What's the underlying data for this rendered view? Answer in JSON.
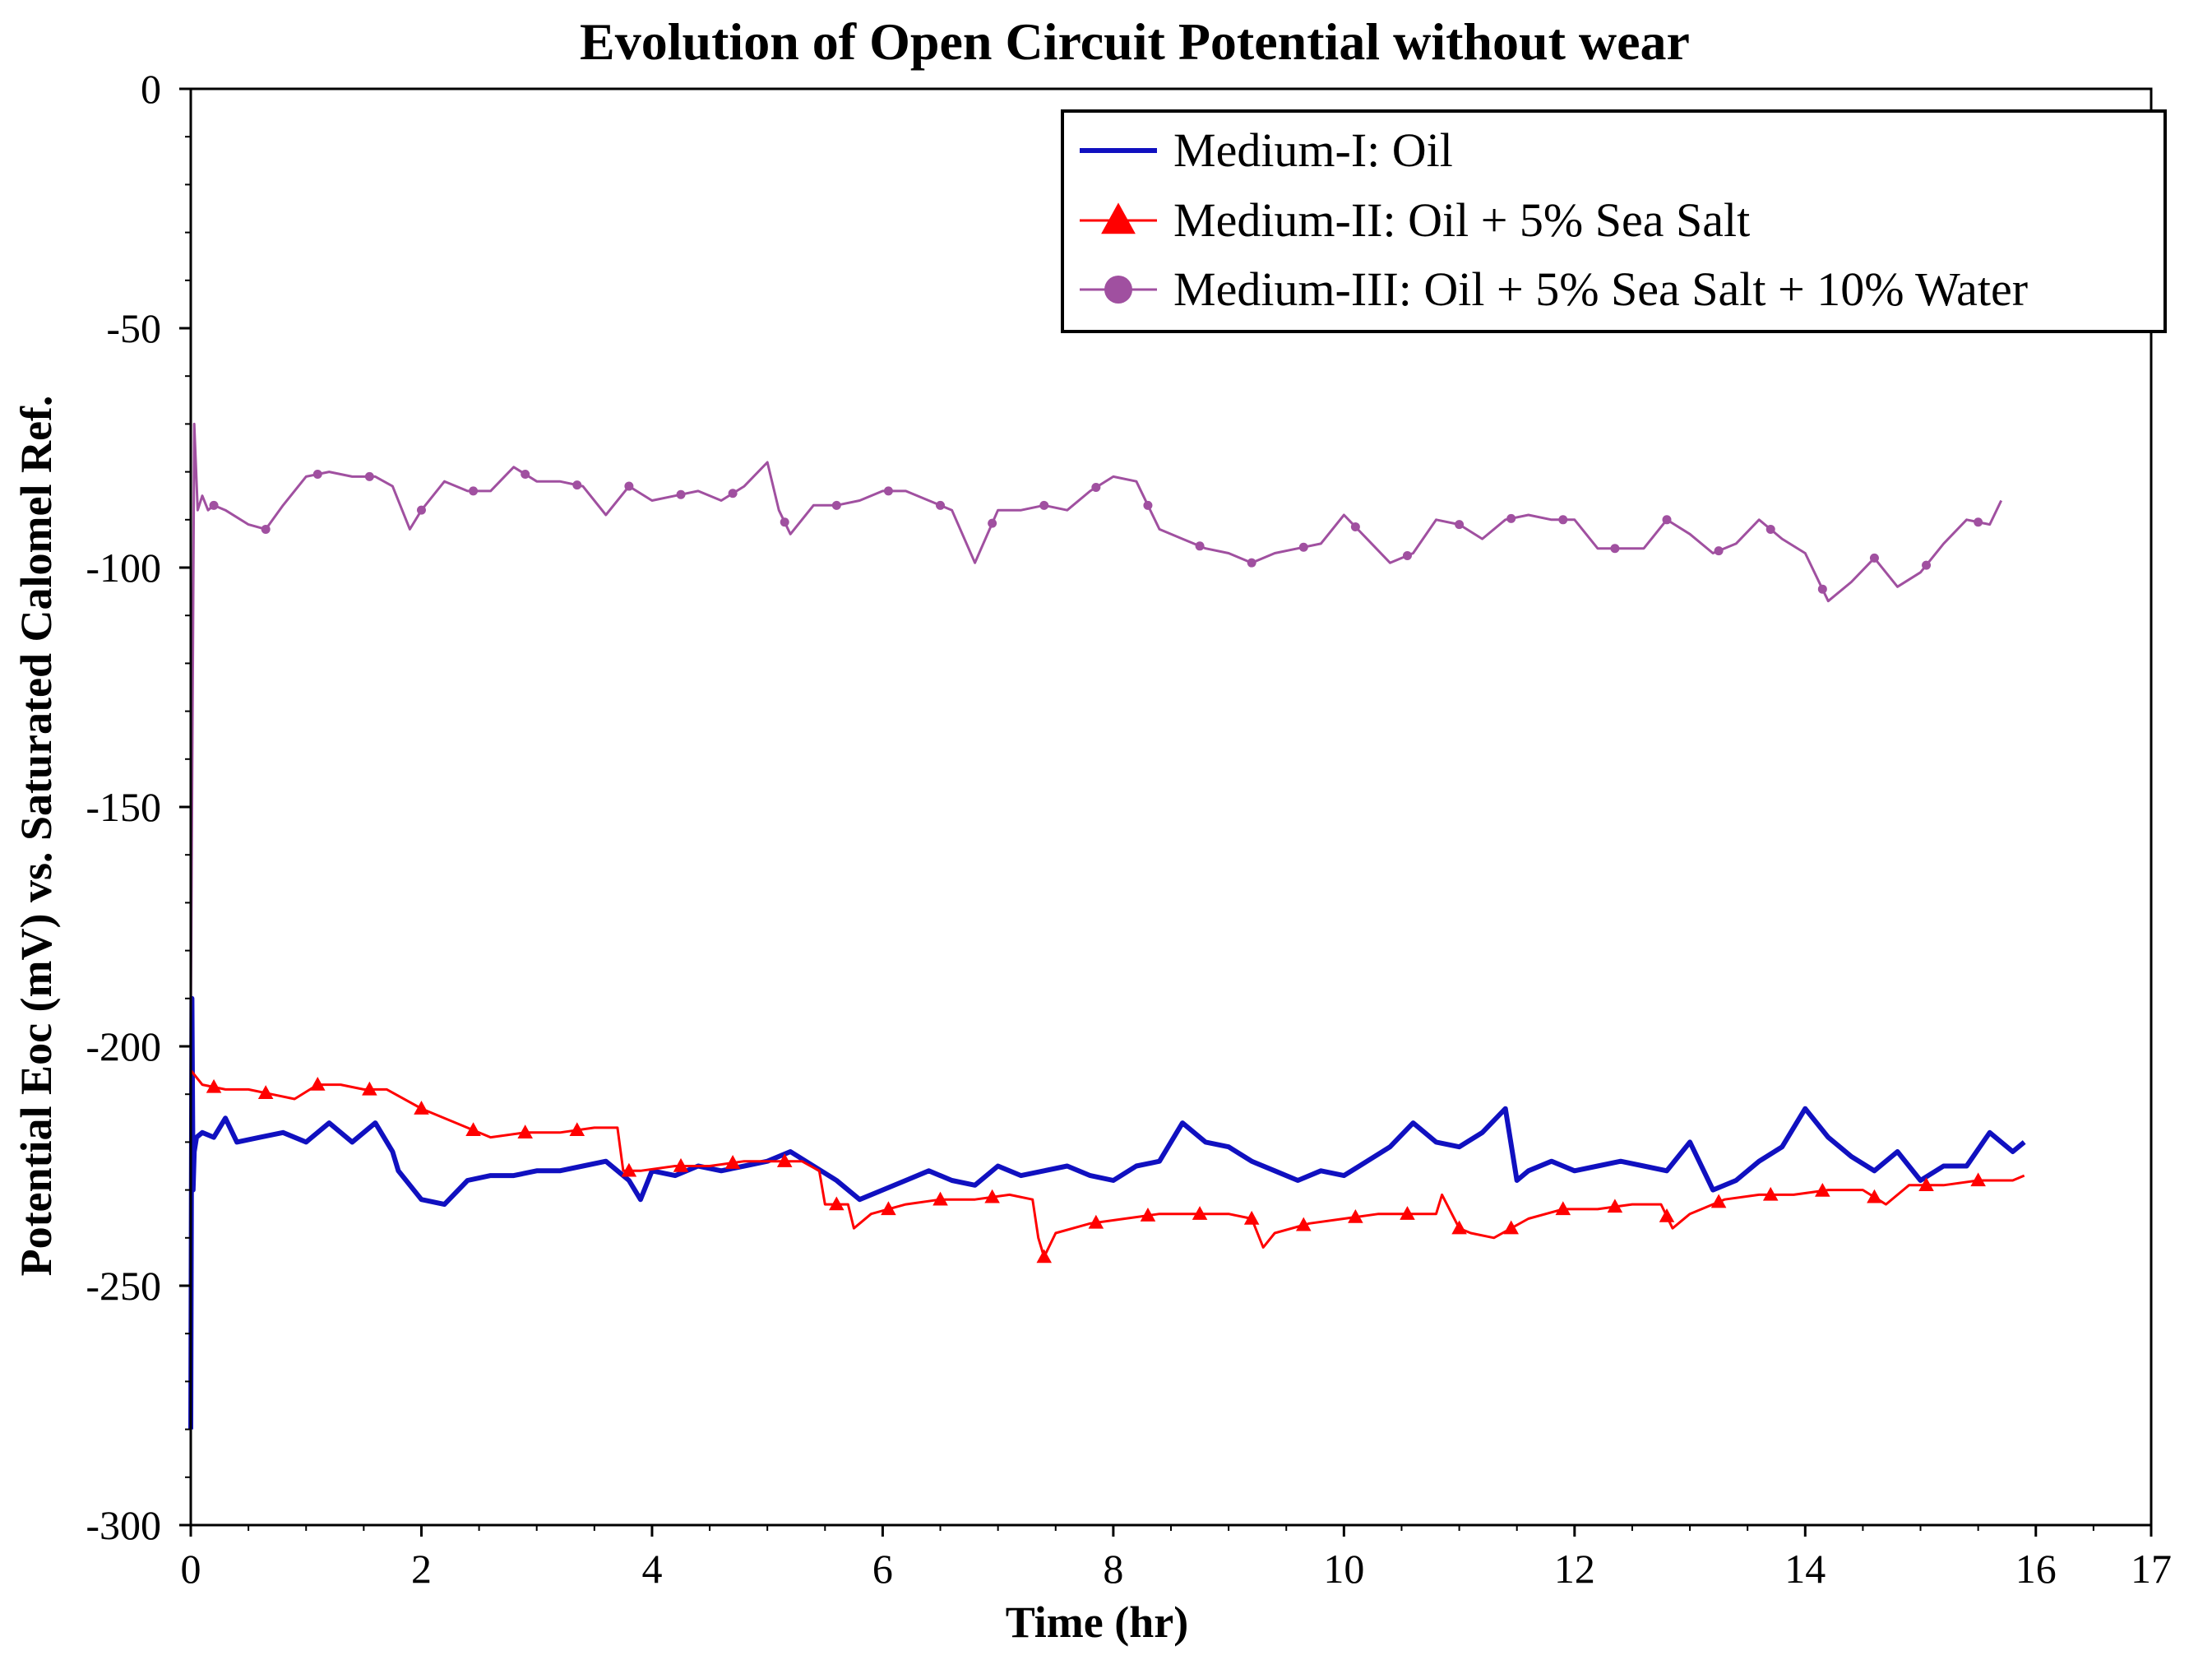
{
  "chart_data": {
    "type": "line",
    "title": "Evolution of Open Circuit Potential without wear",
    "xlabel": "Time (hr)",
    "ylabel": "Potential Eoc (mV) vs. Saturated Calomel Ref.",
    "xlim": [
      0,
      17
    ],
    "ylim": [
      -300,
      0
    ],
    "xticks": [
      0,
      2,
      4,
      6,
      8,
      10,
      12,
      14,
      16,
      17
    ],
    "yticks": [
      0,
      -50,
      -100,
      -150,
      -200,
      -250,
      -300
    ],
    "legend_position": "top-right",
    "series": [
      {
        "name": "Medium-I: Oil",
        "color": "#1010c0",
        "marker": "none",
        "x": [
          0,
          0.01,
          0.02,
          0.03,
          0.05,
          0.1,
          0.2,
          0.3,
          0.4,
          0.6,
          0.8,
          1.0,
          1.2,
          1.4,
          1.6,
          1.75,
          1.8,
          2.0,
          2.2,
          2.4,
          2.6,
          2.8,
          3.0,
          3.2,
          3.4,
          3.6,
          3.8,
          3.9,
          4.0,
          4.2,
          4.4,
          4.6,
          4.8,
          5.0,
          5.2,
          5.4,
          5.6,
          5.8,
          6.0,
          6.2,
          6.4,
          6.6,
          6.8,
          7.0,
          7.2,
          7.4,
          7.6,
          7.8,
          8.0,
          8.2,
          8.4,
          8.6,
          8.8,
          9.0,
          9.2,
          9.4,
          9.6,
          9.8,
          10.0,
          10.2,
          10.4,
          10.6,
          10.8,
          11.0,
          11.2,
          11.4,
          11.5,
          11.6,
          11.8,
          12.0,
          12.2,
          12.4,
          12.6,
          12.8,
          13.0,
          13.2,
          13.4,
          13.6,
          13.8,
          14.0,
          14.2,
          14.4,
          14.6,
          14.8,
          15.0,
          15.2,
          15.4,
          15.6,
          15.8,
          15.9
        ],
        "y": [
          -280,
          -190,
          -230,
          -222,
          -219,
          -218,
          -219,
          -215,
          -220,
          -219,
          -218,
          -220,
          -216,
          -220,
          -216,
          -222,
          -226,
          -232,
          -233,
          -228,
          -227,
          -227,
          -226,
          -226,
          -225,
          -224,
          -228,
          -232,
          -226,
          -227,
          -225,
          -226,
          -225,
          -224,
          -222,
          -225,
          -228,
          -232,
          -230,
          -228,
          -226,
          -228,
          -229,
          -225,
          -227,
          -226,
          -225,
          -227,
          -228,
          -225,
          -224,
          -216,
          -220,
          -221,
          -224,
          -226,
          -228,
          -226,
          -227,
          -224,
          -221,
          -216,
          -220,
          -221,
          -218,
          -213,
          -228,
          -226,
          -224,
          -226,
          -225,
          -224,
          -225,
          -226,
          -220,
          -230,
          -228,
          -224,
          -221,
          -213,
          -219,
          -223,
          -226,
          -222,
          -228,
          -225,
          -225,
          -218,
          -222,
          -220
        ]
      },
      {
        "name": "Medium-II: Oil + 5% Sea Salt",
        "color": "#ff0000",
        "marker": "triangle",
        "x": [
          0,
          0.1,
          0.3,
          0.5,
          0.7,
          0.9,
          1.1,
          1.3,
          1.5,
          1.7,
          2.0,
          2.3,
          2.6,
          2.9,
          3.2,
          3.5,
          3.7,
          3.75,
          3.9,
          4.2,
          4.5,
          4.8,
          5.0,
          5.3,
          5.45,
          5.5,
          5.6,
          5.7,
          5.75,
          5.9,
          6.2,
          6.5,
          6.8,
          7.1,
          7.3,
          7.35,
          7.4,
          7.5,
          7.8,
          8.1,
          8.4,
          8.7,
          9.0,
          9.2,
          9.3,
          9.4,
          9.7,
          10.0,
          10.3,
          10.6,
          10.8,
          10.85,
          11.0,
          11.1,
          11.3,
          11.6,
          11.9,
          12.2,
          12.5,
          12.75,
          12.85,
          13.0,
          13.3,
          13.6,
          13.9,
          14.2,
          14.5,
          14.7,
          14.9,
          15.2,
          15.5,
          15.8,
          15.9
        ],
        "y": [
          -205,
          -208,
          -209,
          -209,
          -210,
          -211,
          -208,
          -208,
          -209,
          -209,
          -213,
          -216,
          -219,
          -218,
          -218,
          -217,
          -217,
          -226,
          -226,
          -225,
          -225,
          -224,
          -224,
          -224,
          -226,
          -233,
          -233,
          -233,
          -238,
          -235,
          -233,
          -232,
          -232,
          -231,
          -232,
          -240,
          -244,
          -239,
          -237,
          -236,
          -235,
          -235,
          -235,
          -236,
          -242,
          -239,
          -237,
          -236,
          -235,
          -235,
          -235,
          -231,
          -238,
          -239,
          -240,
          -236,
          -234,
          -234,
          -233,
          -233,
          -238,
          -235,
          -232,
          -231,
          -231,
          -230,
          -230,
          -233,
          -229,
          -229,
          -228,
          -228,
          -227
        ]
      },
      {
        "name": "Medium-III: Oil + 5% Sea Salt + 10% Water",
        "color": "#a050a0",
        "marker": "circle",
        "x": [
          0,
          0.03,
          0.06,
          0.1,
          0.15,
          0.2,
          0.3,
          0.5,
          0.65,
          0.8,
          1.0,
          1.2,
          1.4,
          1.6,
          1.75,
          1.9,
          2.0,
          2.2,
          2.4,
          2.6,
          2.8,
          3.0,
          3.2,
          3.4,
          3.6,
          3.8,
          4.0,
          4.2,
          4.4,
          4.6,
          4.8,
          5.0,
          5.1,
          5.2,
          5.4,
          5.6,
          5.8,
          6.0,
          6.2,
          6.4,
          6.6,
          6.8,
          7.0,
          7.2,
          7.4,
          7.6,
          7.8,
          8.0,
          8.2,
          8.4,
          8.6,
          8.8,
          9.0,
          9.2,
          9.4,
          9.6,
          9.8,
          10.0,
          10.2,
          10.4,
          10.6,
          10.8,
          11.0,
          11.2,
          11.4,
          11.6,
          11.8,
          12.0,
          12.2,
          12.4,
          12.6,
          12.8,
          13.0,
          13.2,
          13.4,
          13.6,
          13.8,
          14.0,
          14.2,
          14.4,
          14.6,
          14.8,
          15.0,
          15.2,
          15.4,
          15.6,
          15.7
        ],
        "y": [
          -195,
          -70,
          -88,
          -85,
          -88,
          -87,
          -88,
          -91,
          -92,
          -87,
          -81,
          -80,
          -81,
          -81,
          -83,
          -92,
          -88,
          -82,
          -84,
          -84,
          -79,
          -82,
          -82,
          -83,
          -89,
          -83,
          -86,
          -85,
          -84,
          -86,
          -83,
          -78,
          -88,
          -93,
          -87,
          -87,
          -86,
          -84,
          -84,
          -86,
          -88,
          -99,
          -88,
          -88,
          -87,
          -88,
          -84,
          -81,
          -82,
          -92,
          -94,
          -96,
          -97,
          -99,
          -97,
          -96,
          -95,
          -89,
          -94,
          -99,
          -97,
          -90,
          -91,
          -94,
          -90,
          -89,
          -90,
          -90,
          -96,
          -96,
          -96,
          -90,
          -93,
          -97,
          -95,
          -90,
          -94,
          -97,
          -107,
          -103,
          -98,
          -104,
          -101,
          -95,
          -90,
          -91,
          -86
        ]
      }
    ]
  }
}
